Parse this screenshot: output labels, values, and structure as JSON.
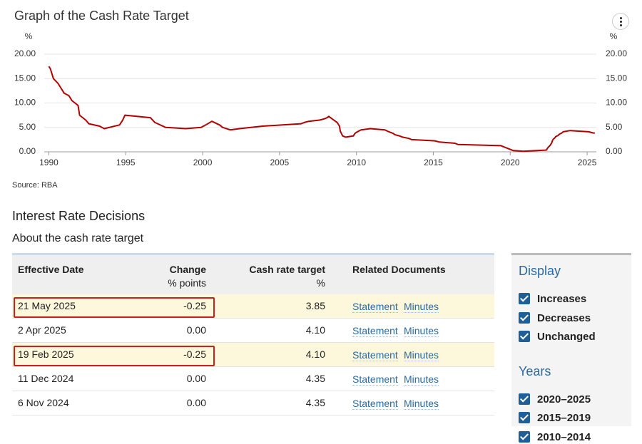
{
  "chart_data": {
    "type": "line",
    "title": "Graph of the Cash Rate Target",
    "ylabel": "%",
    "y2label": "%",
    "color": "#b00000",
    "grid": true,
    "x": [
      1990.0,
      1990.1,
      1990.3,
      1990.6,
      1990.8,
      1991.0,
      1991.3,
      1991.5,
      1991.9,
      1992.0,
      1992.4,
      1992.6,
      1993.3,
      1993.6,
      1994.6,
      1994.8,
      1994.95,
      1996.6,
      1996.9,
      1997.6,
      1998.9,
      1999.9,
      2000.2,
      2000.6,
      2001.1,
      2001.3,
      2001.8,
      2002.4,
      2003.9,
      2005.2,
      2006.4,
      2006.6,
      2006.9,
      2007.6,
      2007.9,
      2008.1,
      2008.2,
      2008.75,
      2008.9,
      2008.95,
      2009.1,
      2009.3,
      2009.8,
      2009.9,
      2010.0,
      2010.3,
      2010.9,
      2011.85,
      2012.0,
      2012.4,
      2012.5,
      2012.8,
      2013.0,
      2013.4,
      2013.6,
      2015.1,
      2015.4,
      2016.4,
      2016.6,
      2019.4,
      2019.6,
      2019.8,
      2020.2,
      2020.85,
      2022.35,
      2022.45,
      2022.6,
      2022.7,
      2022.75,
      2022.8,
      2022.9,
      2022.95,
      2023.1,
      2023.2,
      2023.35,
      2023.45,
      2023.9,
      2025.1,
      2025.4,
      2025.5
    ],
    "values": [
      17.5,
      17.0,
      15.0,
      14.0,
      13.0,
      12.0,
      11.5,
      10.5,
      9.5,
      7.5,
      6.5,
      5.75,
      5.25,
      4.75,
      5.5,
      6.5,
      7.5,
      7.0,
      6.0,
      5.0,
      4.75,
      5.0,
      5.5,
      6.25,
      5.5,
      5.0,
      4.5,
      4.75,
      5.25,
      5.5,
      5.75,
      6.0,
      6.25,
      6.5,
      6.75,
      7.0,
      7.25,
      6.0,
      5.25,
      4.25,
      3.25,
      3.0,
      3.25,
      3.75,
      4.0,
      4.5,
      4.75,
      4.5,
      4.25,
      3.75,
      3.5,
      3.25,
      3.0,
      2.75,
      2.5,
      2.25,
      2.0,
      1.75,
      1.5,
      1.25,
      1.0,
      0.75,
      0.25,
      0.1,
      0.35,
      0.85,
      1.35,
      1.85,
      2.35,
      2.6,
      2.85,
      3.1,
      3.35,
      3.6,
      3.85,
      4.1,
      4.35,
      4.1,
      3.85,
      3.85
    ],
    "xlim": [
      1989.7,
      2025.6
    ],
    "xticks": [
      1990,
      1995,
      2000,
      2005,
      2010,
      2015,
      2020,
      2025
    ],
    "ylim": [
      0,
      20
    ],
    "yticks": [
      {
        "value": 0,
        "label": "0.00"
      },
      {
        "value": 5,
        "label": "5.00"
      },
      {
        "value": 10,
        "label": "10.00"
      },
      {
        "value": 15,
        "label": "15.00"
      },
      {
        "value": 20,
        "label": "20.00"
      }
    ],
    "y2lim": [
      0,
      20
    ],
    "y2ticks": [
      {
        "value": 0,
        "label": "0.00"
      },
      {
        "value": 5,
        "label": "5.00"
      },
      {
        "value": 10,
        "label": "10.00"
      },
      {
        "value": 15,
        "label": "15.00"
      },
      {
        "value": 20,
        "label": "20.00"
      }
    ]
  },
  "source": "Source: RBA",
  "section": {
    "title": "Interest Rate Decisions",
    "subtitle": "About the cash rate target"
  },
  "table": {
    "headers": [
      [
        "Effective Date"
      ],
      [
        "Change",
        "% points"
      ],
      [
        "Cash rate target",
        "%"
      ],
      [
        "Related Documents"
      ]
    ],
    "rows": [
      {
        "cells": [
          "21 May 2025",
          "-0.25",
          "3.85",
          "Statement",
          "Minutes"
        ],
        "highlight": true
      },
      {
        "cells": [
          "2 Apr 2025",
          "0.00",
          "4.10",
          "Statement",
          "Minutes"
        ],
        "highlight": false
      },
      {
        "cells": [
          "19 Feb 2025",
          "-0.25",
          "4.10",
          "Statement",
          "Minutes"
        ],
        "highlight": true
      },
      {
        "cells": [
          "11 Dec 2024",
          "0.00",
          "4.35",
          "Statement",
          "Minutes"
        ],
        "highlight": false
      },
      {
        "cells": [
          "6 Nov 2024",
          "0.00",
          "4.35",
          "Statement",
          "Minutes"
        ],
        "highlight": false
      }
    ]
  },
  "sidebar": {
    "display": {
      "title": "Display",
      "options": [
        "Increases",
        "Decreases",
        "Unchanged"
      ]
    },
    "years": {
      "title": "Years",
      "options": [
        "2020–2025",
        "2015–2019",
        "2010–2014"
      ]
    }
  }
}
